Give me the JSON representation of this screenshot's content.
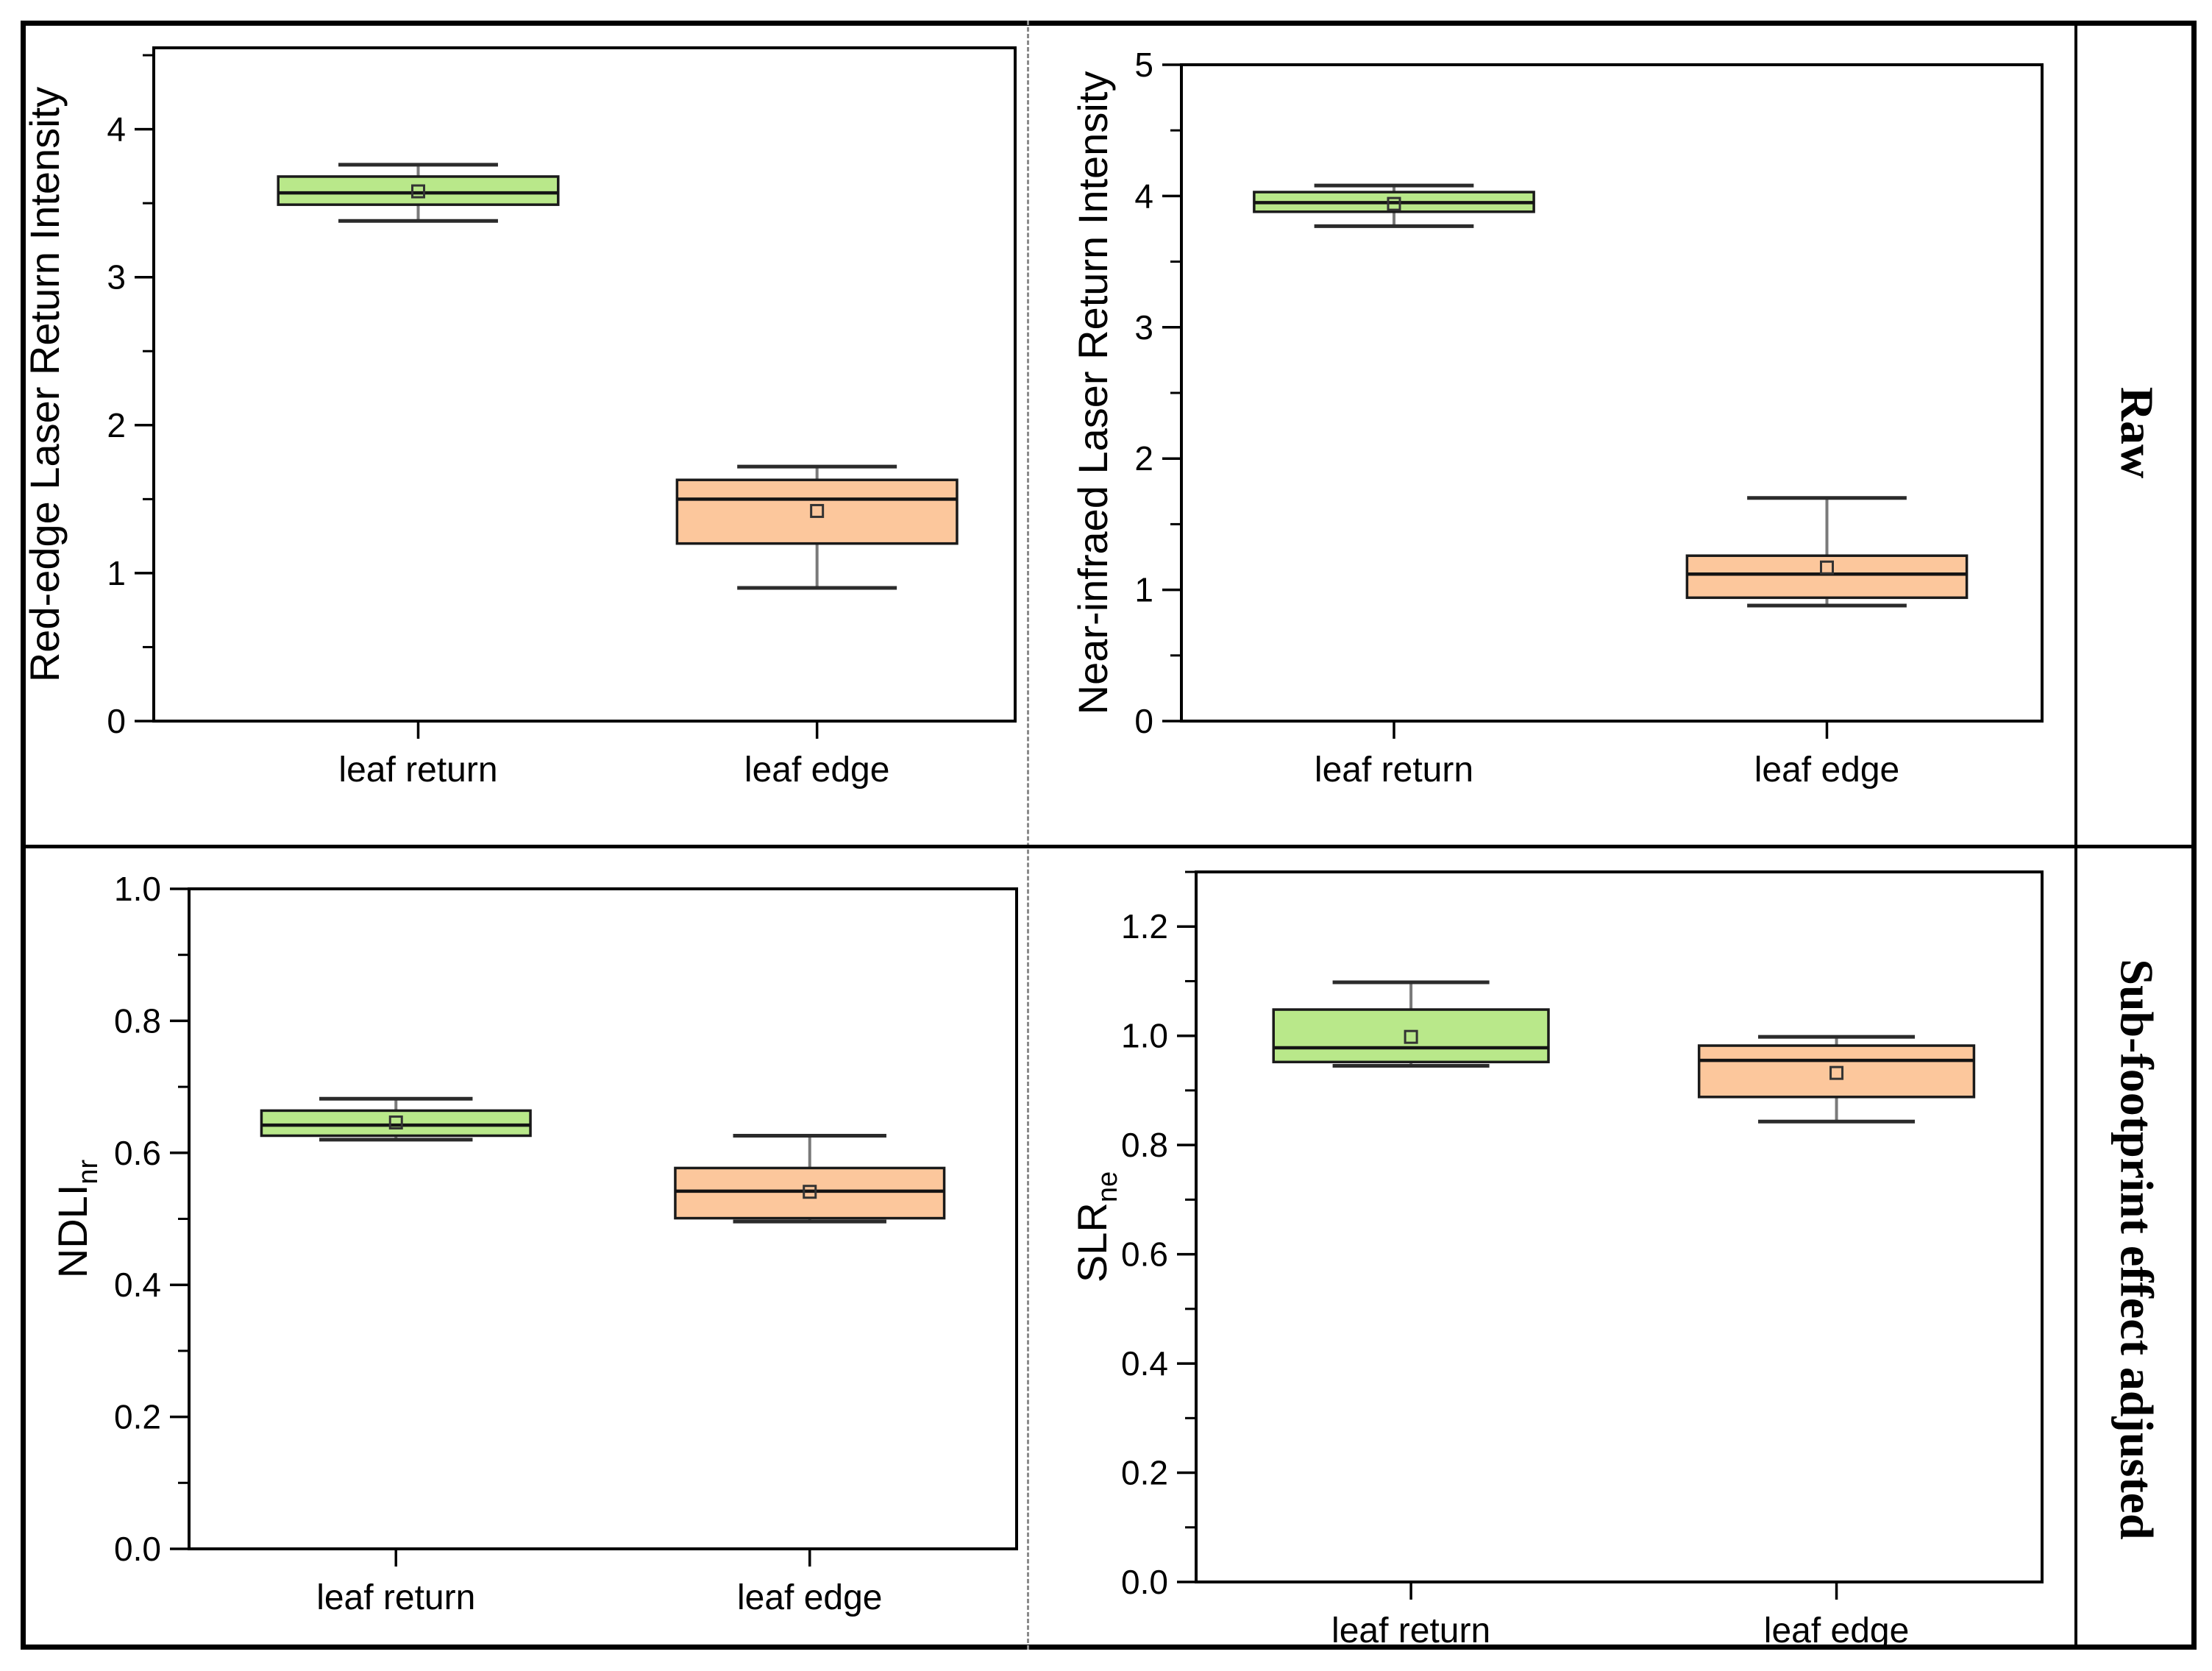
{
  "colors": {
    "green": "#b9e88a",
    "orange": "#fcc79c",
    "box_border": "#1a1a1a",
    "median": "#141414",
    "whisker_stem": "#7a7a7a",
    "whisker_cap": "#2b2b2b",
    "mean_marker": "#333333",
    "frame": "#000000",
    "dashed_divider": "#8a8a8a"
  },
  "categories": [
    "leaf return",
    "leaf edge"
  ],
  "row_labels": {
    "top": "Raw",
    "bottom": "Sub-footprint effect adjusted"
  },
  "chart_data": [
    {
      "type": "box",
      "position": "top-left",
      "y_label": "Red-edge Laser Return Intensity",
      "y_label_sub": "",
      "ylim": [
        0,
        4.55
      ],
      "ytick_values": [
        0,
        1,
        2,
        3,
        4
      ],
      "ytick_labels": [
        "0",
        "1",
        "2",
        "3",
        "4"
      ],
      "minor_step": 0.5,
      "x_centers": [
        0.307,
        0.77
      ],
      "box_width_frac": 0.325,
      "cap_width_frac": 0.57,
      "categories": [
        "leaf return",
        "leaf edge"
      ],
      "series": [
        {
          "category": "leaf return",
          "color": "green",
          "whisker_low": 3.38,
          "q1": 3.49,
          "median": 3.57,
          "q3": 3.68,
          "whisker_high": 3.76,
          "mean": 3.58
        },
        {
          "category": "leaf edge",
          "color": "orange",
          "whisker_low": 0.9,
          "q1": 1.2,
          "median": 1.5,
          "q3": 1.63,
          "whisker_high": 1.72,
          "mean": 1.42
        }
      ]
    },
    {
      "type": "box",
      "position": "top-right",
      "y_label": "Near-infraed Laser Return Intensity",
      "y_label_sub": "",
      "ylim": [
        0,
        5.0
      ],
      "ytick_values": [
        0,
        1,
        2,
        3,
        4,
        5
      ],
      "ytick_labels": [
        "0",
        "1",
        "2",
        "3",
        "4",
        "5"
      ],
      "minor_step": 0.5,
      "x_centers": [
        0.247,
        0.75
      ],
      "box_width_frac": 0.325,
      "cap_width_frac": 0.57,
      "categories": [
        "leaf return",
        "leaf edge"
      ],
      "series": [
        {
          "category": "leaf return",
          "color": "green",
          "whisker_low": 3.77,
          "q1": 3.88,
          "median": 3.95,
          "q3": 4.03,
          "whisker_high": 4.08,
          "mean": 3.94
        },
        {
          "category": "leaf edge",
          "color": "orange",
          "whisker_low": 0.88,
          "q1": 0.94,
          "median": 1.12,
          "q3": 1.26,
          "whisker_high": 1.7,
          "mean": 1.17
        }
      ]
    },
    {
      "type": "box",
      "position": "bottom-left",
      "y_label": "NDLI",
      "y_label_sub": "nr",
      "ylim": [
        0,
        1.0
      ],
      "ytick_values": [
        0.0,
        0.2,
        0.4,
        0.6,
        0.8,
        1.0
      ],
      "ytick_labels": [
        "0.0",
        "0.2",
        "0.4",
        "0.6",
        "0.8",
        "1.0"
      ],
      "minor_step": 0.1,
      "x_centers": [
        0.25,
        0.75
      ],
      "box_width_frac": 0.325,
      "cap_width_frac": 0.57,
      "categories": [
        "leaf return",
        "leaf edge"
      ],
      "series": [
        {
          "category": "leaf return",
          "color": "green",
          "whisker_low": 0.62,
          "q1": 0.626,
          "median": 0.642,
          "q3": 0.664,
          "whisker_high": 0.682,
          "mean": 0.646
        },
        {
          "category": "leaf edge",
          "color": "orange",
          "whisker_low": 0.496,
          "q1": 0.501,
          "median": 0.542,
          "q3": 0.577,
          "whisker_high": 0.626,
          "mean": 0.541
        }
      ]
    },
    {
      "type": "box",
      "position": "bottom-right",
      "y_label": "SLR",
      "y_label_sub": "ne",
      "ylim": [
        0,
        1.3
      ],
      "ytick_values": [
        0.0,
        0.2,
        0.4,
        0.6,
        0.8,
        1.0,
        1.2
      ],
      "ytick_labels": [
        "0.0",
        "0.2",
        "0.4",
        "0.6",
        "0.8",
        "1.0",
        "1.2"
      ],
      "minor_step": 0.1,
      "x_centers": [
        0.254,
        0.757
      ],
      "box_width_frac": 0.325,
      "cap_width_frac": 0.57,
      "categories": [
        "leaf return",
        "leaf edge"
      ],
      "series": [
        {
          "category": "leaf return",
          "color": "green",
          "whisker_low": 0.945,
          "q1": 0.952,
          "median": 0.978,
          "q3": 1.048,
          "whisker_high": 1.098,
          "mean": 0.998
        },
        {
          "category": "leaf edge",
          "color": "orange",
          "whisker_low": 0.843,
          "q1": 0.888,
          "median": 0.955,
          "q3": 0.982,
          "whisker_high": 0.998,
          "mean": 0.932
        }
      ]
    }
  ]
}
